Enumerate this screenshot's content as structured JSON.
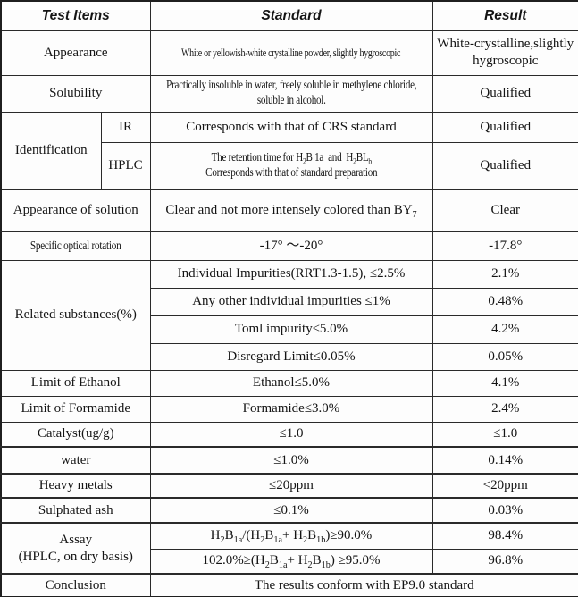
{
  "header": {
    "col_test_items": "Test Items",
    "col_standard": "Standard",
    "col_result": "Result"
  },
  "rows": {
    "appearance": {
      "item": "Appearance",
      "standard": "White or yellowish-white crystalline powder, slightly hygroscopic",
      "result": "White-crystalline,slightly hygroscopic"
    },
    "solubility": {
      "item": "Solubility",
      "standard": "Practically insoluble in water, freely soluble in methylene chloride, soluble in alcohol.",
      "result": "Qualified"
    },
    "identification": {
      "item": "Identification",
      "ir": {
        "label": "IR",
        "standard": "Corresponds with that of CRS standard",
        "result": "Qualified"
      },
      "hplc": {
        "label": "HPLC",
        "standard_html": "The retention time for H<sub>2</sub>B 1a&nbsp;&nbsp;and&nbsp;&nbsp;H<sub>2</sub>BL<sub>b</sub><br>Corresponds with that of standard preparation",
        "result": "Qualified"
      }
    },
    "appearance_of_solution": {
      "item": "Appearance of solution",
      "standard_html": "Clear and not more intensely colored than BY<sub>7</sub>",
      "result": "Clear"
    },
    "specific_optical_rotation": {
      "item": "Specific optical rotation",
      "standard": "-17°  ～-20°",
      "result": "-17.8°"
    },
    "related_substances": {
      "item": "Related substances(%)",
      "subrows": [
        {
          "standard": "Individual Impurities(RRT1.3-1.5),  ≤2.5%",
          "result": "2.1%"
        },
        {
          "standard": "Any other individual impurities ≤1%",
          "result": "0.48%"
        },
        {
          "standard": "Toml impurity≤5.0%",
          "result": "4.2%"
        },
        {
          "standard": "Disregard Limit≤0.05%",
          "result": "0.05%"
        }
      ]
    },
    "limit_of_ethanol": {
      "item": "Limit of Ethanol",
      "standard": "Ethanol≤5.0%",
      "result": "4.1%"
    },
    "limit_of_formamide": {
      "item": "Limit of Formamide",
      "standard": "Formamide≤3.0%",
      "result": "2.4%"
    },
    "catalyst": {
      "item": "Catalyst(ug/g)",
      "standard": "≤1.0",
      "result": "≤1.0"
    },
    "water": {
      "item": "water",
      "standard": "≤1.0%",
      "result": "0.14%"
    },
    "heavy_metals": {
      "item": "Heavy metals",
      "standard": "≤20ppm",
      "result": "<20ppm"
    },
    "sulphated_ash": {
      "item": "Sulphated ash",
      "standard": "≤0.1%",
      "result": "0.03%"
    },
    "assay": {
      "item_html": "Assay<br>(HPLC, on dry basis)",
      "subrows": [
        {
          "standard_html": "H<sub>2</sub>B<sub>1a</sub>/(H<sub>2</sub>B<sub>1a</sub>+ H<sub>2</sub>B<sub>1b</sub>)≥90.0%",
          "result": "98.4%"
        },
        {
          "standard_html": "102.0%≥(H<sub>2</sub>B<sub>1a</sub>+ H<sub>2</sub>B<sub>1b</sub>)  ≥95.0%",
          "result": "96.8%"
        }
      ]
    },
    "conclusion": {
      "item": "Conclusion",
      "standard": "The results conform with EP9.0 standard"
    }
  }
}
